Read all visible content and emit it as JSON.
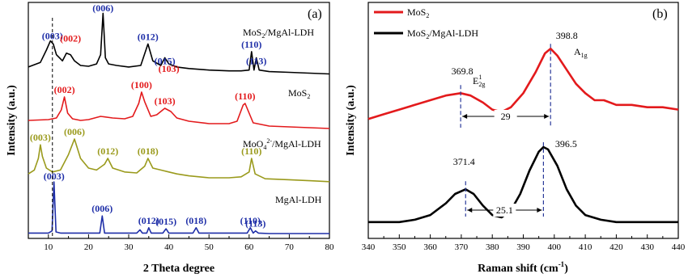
{
  "chart_data": [
    {
      "panel": "(a)",
      "type": "line",
      "xlabel": "2 Theta degree",
      "ylabel": "Intensity (a.u.)",
      "xlim": [
        5,
        80
      ],
      "x_ticks": [
        10,
        20,
        30,
        40,
        50,
        60,
        70,
        80
      ],
      "y_ticks_shown": false,
      "dashed_line_x": 11,
      "series": [
        {
          "name": "MoS2/MgAl-LDH",
          "color": "#000000",
          "x": [
            5,
            8,
            9.5,
            10.5,
            11.2,
            12,
            13.5,
            14.5,
            15.5,
            16.5,
            18,
            20,
            22,
            23,
            23.6,
            24.2,
            25,
            27,
            30,
            33,
            34.8,
            36,
            38,
            39,
            40,
            42,
            45,
            50,
            55,
            58,
            60,
            60.6,
            61.2,
            61.8,
            62.5,
            65,
            70,
            75,
            80
          ],
          "values": [
            18,
            24,
            40,
            52,
            48,
            34,
            26,
            36,
            34,
            26,
            20,
            19,
            22,
            34,
            88,
            30,
            22,
            20,
            18,
            20,
            48,
            26,
            20,
            30,
            22,
            18,
            16,
            14,
            13,
            13,
            14,
            38,
            14,
            30,
            14,
            12,
            11,
            10,
            9
          ],
          "peaks": [
            {
              "label": "(003)",
              "x": 11,
              "color": "#1f2fa8"
            },
            {
              "label": "(002)",
              "x": 15.5,
              "color": "#e31a1c"
            },
            {
              "label": "(006)",
              "x": 23.6,
              "color": "#1f2fa8"
            },
            {
              "label": "(012)",
              "x": 34.8,
              "color": "#1f2fa8"
            },
            {
              "label": "(015)",
              "x": 39,
              "color": "#1f2fa8"
            },
            {
              "label": "(103)",
              "x": 40,
              "color": "#e31a1c"
            },
            {
              "label": "(110)",
              "x": 60.6,
              "color": "#1f2fa8"
            },
            {
              "label": "(113)",
              "x": 61.8,
              "color": "#1f2fa8"
            }
          ]
        },
        {
          "name": "MoS2",
          "color": "#e31a1c",
          "x": [
            5,
            10,
            12,
            13.2,
            14,
            14.8,
            16,
            18,
            20,
            23,
            26,
            29,
            31,
            32.5,
            33.2,
            34,
            35.5,
            37,
            39,
            40.5,
            42,
            45,
            50,
            55,
            57,
            58.5,
            59,
            59.5,
            61,
            65,
            70,
            75,
            80
          ],
          "values": [
            15,
            16,
            18,
            28,
            44,
            24,
            17,
            15,
            16,
            20,
            18,
            17,
            20,
            36,
            50,
            38,
            20,
            22,
            30,
            26,
            18,
            14,
            11,
            11,
            14,
            34,
            36,
            30,
            12,
            8,
            7,
            6,
            5
          ],
          "peaks": [
            {
              "label": "(002)",
              "x": 14,
              "color": "#e31a1c"
            },
            {
              "label": "(100)",
              "x": 33.2,
              "color": "#e31a1c"
            },
            {
              "label": "(103)",
              "x": 39,
              "color": "#e31a1c"
            },
            {
              "label": "(110)",
              "x": 59,
              "color": "#e31a1c"
            }
          ]
        },
        {
          "name": "MoO4 2-/MgAl-LDH",
          "color": "#9a9a1c",
          "x": [
            5,
            6.5,
            7.5,
            8,
            8.5,
            9.5,
            11,
            13,
            15,
            16.5,
            18,
            20,
            22,
            24,
            24.8,
            26,
            29,
            32,
            34,
            34.8,
            36,
            38,
            40,
            42,
            45,
            50,
            55,
            58,
            60,
            60.6,
            61.5,
            64,
            70,
            75,
            80
          ],
          "values": [
            14,
            18,
            30,
            44,
            32,
            20,
            16,
            18,
            34,
            50,
            30,
            20,
            18,
            24,
            30,
            20,
            16,
            15,
            22,
            30,
            20,
            18,
            16,
            14,
            12,
            10,
            10,
            11,
            16,
            30,
            14,
            9,
            8,
            7,
            6
          ],
          "peaks": [
            {
              "label": "(003)",
              "x": 8,
              "color": "#9a9a1c"
            },
            {
              "label": "(006)",
              "x": 16.5,
              "color": "#9a9a1c"
            },
            {
              "label": "(012)",
              "x": 24.8,
              "color": "#9a9a1c"
            },
            {
              "label": "(018)",
              "x": 34.8,
              "color": "#9a9a1c"
            },
            {
              "label": "(110)",
              "x": 60.6,
              "color": "#9a9a1c"
            }
          ]
        },
        {
          "name": "MgAl-LDH",
          "color": "#1f2fa8",
          "x": [
            5,
            10,
            10.9,
            11.4,
            11.9,
            13,
            20,
            22.8,
            23.4,
            24,
            30,
            32,
            32.8,
            33.4,
            34.5,
            35,
            35.6,
            38.5,
            39.3,
            40,
            46,
            46.8,
            47.5,
            55,
            59.5,
            60.3,
            61,
            61.6,
            62.3,
            65,
            70,
            75,
            80
          ],
          "values": [
            4,
            4,
            8,
            100,
            6,
            4,
            4,
            4,
            36,
            4,
            4,
            4,
            10,
            4,
            4,
            14,
            4,
            4,
            12,
            4,
            4,
            14,
            4,
            4,
            4,
            14,
            4,
            8,
            4,
            3,
            3,
            3,
            3
          ],
          "peaks": [
            {
              "label": "(003)",
              "x": 11.4,
              "color": "#1f2fa8"
            },
            {
              "label": "(006)",
              "x": 23.4,
              "color": "#1f2fa8"
            },
            {
              "label": "(012)",
              "x": 35,
              "color": "#1f2fa8"
            },
            {
              "label": "(015)",
              "x": 39.3,
              "color": "#1f2fa8"
            },
            {
              "label": "(018)",
              "x": 46.8,
              "color": "#1f2fa8"
            },
            {
              "label": "(110)",
              "x": 60.3,
              "color": "#1f2fa8"
            },
            {
              "label": "(113)",
              "x": 61.6,
              "color": "#1f2fa8"
            }
          ]
        }
      ]
    },
    {
      "panel": "(b)",
      "type": "line",
      "xlabel": "Raman shift (cm-1)",
      "ylabel": "Intensity (a.u.)",
      "xlim": [
        340,
        440
      ],
      "x_ticks": [
        340,
        350,
        360,
        370,
        380,
        390,
        400,
        410,
        420,
        430,
        440
      ],
      "y_ticks_shown": false,
      "legend_position": "top-left",
      "series": [
        {
          "name": "MoS2",
          "color": "#e31a1c",
          "x": [
            340,
            345,
            350,
            355,
            360,
            365,
            369.8,
            373,
            377,
            380,
            383,
            386,
            390,
            394,
            397,
            398.8,
            401,
            404,
            407,
            410,
            413,
            416,
            420,
            425,
            430,
            435,
            440
          ],
          "values": [
            0.52,
            0.54,
            0.56,
            0.58,
            0.6,
            0.62,
            0.63,
            0.62,
            0.59,
            0.56,
            0.55,
            0.57,
            0.63,
            0.72,
            0.8,
            0.82,
            0.79,
            0.73,
            0.67,
            0.63,
            0.6,
            0.6,
            0.58,
            0.58,
            0.57,
            0.57,
            0.56
          ],
          "peaks": [
            {
              "label": "369.8",
              "x": 369.8,
              "mode": "E2g1"
            },
            {
              "label": "398.8",
              "x": 398.8,
              "mode": "A1g"
            }
          ],
          "gap_label": "29"
        },
        {
          "name": "MoS2/MgAl-LDH",
          "color": "#000000",
          "x": [
            340,
            345,
            350,
            355,
            360,
            365,
            368,
            371.4,
            374,
            377,
            380,
            383,
            386,
            389,
            392,
            395,
            396.5,
            398,
            401,
            404,
            407,
            410,
            415,
            420,
            425,
            430,
            435,
            440
          ],
          "values": [
            0.08,
            0.08,
            0.08,
            0.09,
            0.11,
            0.16,
            0.2,
            0.22,
            0.2,
            0.15,
            0.11,
            0.1,
            0.13,
            0.2,
            0.3,
            0.38,
            0.4,
            0.39,
            0.32,
            0.22,
            0.15,
            0.11,
            0.09,
            0.08,
            0.08,
            0.08,
            0.08,
            0.08
          ],
          "peaks": [
            {
              "label": "371.4",
              "x": 371.4
            },
            {
              "label": "396.5",
              "x": 396.5
            }
          ],
          "gap_label": "25.1"
        }
      ]
    }
  ]
}
